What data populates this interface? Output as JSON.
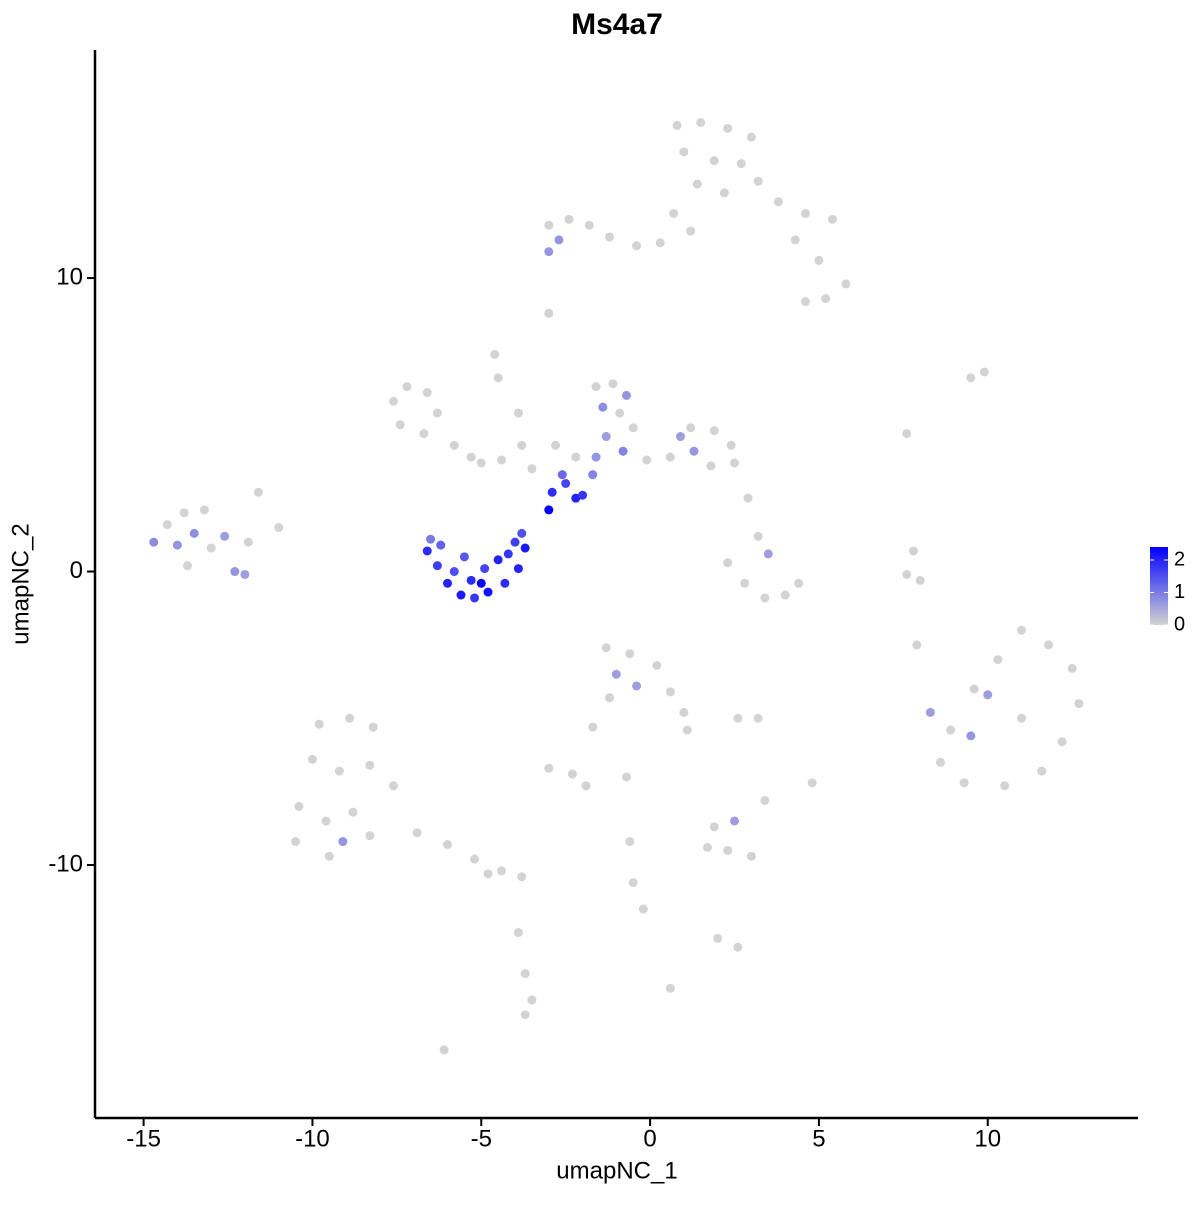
{
  "chart_data": {
    "type": "scatter",
    "title": "Ms4a7",
    "x_label": "umapNC_1",
    "y_label": "umapNC_2",
    "xlim": [
      -16.44,
      14.45
    ],
    "ylim": [
      -18.62,
      17.77
    ],
    "xticks": [
      -15,
      -10,
      -5,
      0,
      5,
      10
    ],
    "yticks": [
      -10,
      0,
      10
    ],
    "low_color": "#d3d3d3",
    "high_color": "#0000ff",
    "colorbar_lim": [
      0,
      2.4
    ],
    "colorbar_ticks": [
      0,
      1,
      2
    ],
    "x": [
      0.8,
      1.5,
      2.3,
      3.0,
      1.0,
      1.9,
      2.7,
      3.2,
      1.4,
      2.2,
      0.7,
      1.2,
      3.8,
      4.6,
      5.4,
      4.3,
      5.0,
      5.8,
      5.2,
      4.6,
      -3.0,
      -2.4,
      -1.8,
      -2.7,
      -1.2,
      -0.4,
      0.3,
      -3.0,
      -3.0,
      -4.6,
      -7.6,
      -7.2,
      -6.6,
      -6.3,
      -6.7,
      -7.4,
      -5.8,
      -5.3,
      -5.0,
      -4.4,
      -3.8,
      -3.9,
      -4.5,
      -3.5,
      -2.8,
      -2.2,
      -2.9,
      -2.5,
      -2.2,
      -2.0,
      -3.0,
      -2.6,
      -1.7,
      -1.6,
      -1.1,
      -0.7,
      -1.4,
      -0.9,
      -0.5,
      -1.3,
      -0.8,
      -1.6,
      0.6,
      1.2,
      1.9,
      2.4,
      2.5,
      1.8,
      1.3,
      0.9,
      -0.1,
      2.3,
      2.8,
      3.4,
      4.0,
      4.4,
      3.2,
      3.5,
      2.9,
      -14.7,
      -14.3,
      -13.8,
      -13.2,
      -14.0,
      -13.5,
      -13.0,
      -12.6,
      -13.7,
      -12.3,
      -12.0,
      -11.6,
      -6.6,
      -6.3,
      -6.0,
      -5.6,
      -5.2,
      -4.8,
      -4.3,
      -3.9,
      -3.7,
      -4.0,
      -5.8,
      -5.3,
      -4.9,
      -4.5,
      -5.5,
      -6.2,
      -5.0,
      -4.2,
      -6.5,
      -3.8,
      7.8,
      7.6,
      7.9,
      8.3,
      8.9,
      9.6,
      10.3,
      11.0,
      11.8,
      12.5,
      12.7,
      12.2,
      11.6,
      10.5,
      9.3,
      8.6,
      10.0,
      9.5,
      11.0,
      -1.3,
      -0.6,
      0.2,
      -1.0,
      -0.4,
      0.6,
      1.0,
      1.1,
      -1.2,
      -1.7,
      2.6,
      3.2,
      -3.0,
      -2.3,
      -1.9,
      -0.7,
      -9.8,
      -8.9,
      -8.2,
      -10.0,
      -9.2,
      -8.3,
      -7.6,
      -10.4,
      -9.6,
      -8.8,
      -10.5,
      -9.5,
      -9.1,
      -8.3,
      -6.9,
      -6.0,
      -5.2,
      -4.4,
      -3.8,
      -4.8,
      -3.9,
      -3.7,
      -3.5,
      -3.7,
      -6.1,
      1.7,
      2.3,
      3.0,
      2.5,
      1.9,
      -0.6,
      -0.5,
      -0.2,
      2.0,
      2.6,
      0.6,
      4.8,
      3.4,
      9.5,
      9.9,
      7.6,
      8.0,
      -11.0,
      -11.9
    ],
    "values": [
      15.2,
      15.3,
      15.1,
      14.8,
      14.3,
      14.0,
      13.9,
      13.3,
      13.2,
      12.9,
      12.2,
      11.6,
      12.6,
      12.2,
      12.0,
      11.3,
      10.6,
      9.8,
      9.3,
      9.2,
      11.8,
      12.0,
      11.8,
      11.3,
      11.4,
      11.1,
      11.2,
      10.9,
      8.8,
      7.4,
      5.8,
      6.3,
      6.1,
      5.4,
      4.7,
      5.0,
      4.3,
      3.9,
      3.7,
      3.8,
      4.3,
      5.4,
      6.6,
      3.5,
      4.3,
      3.9,
      2.7,
      3.0,
      2.5,
      2.6,
      2.1,
      3.3,
      3.3,
      6.3,
      6.4,
      6.0,
      5.6,
      5.4,
      4.9,
      4.6,
      4.1,
      3.9,
      3.9,
      4.9,
      4.8,
      4.3,
      3.7,
      3.6,
      4.1,
      4.6,
      3.8,
      0.3,
      -0.4,
      -0.9,
      -0.8,
      -0.4,
      1.2,
      0.6,
      2.5,
      1.0,
      1.6,
      2.0,
      2.1,
      0.9,
      1.3,
      0.8,
      1.2,
      0.2,
      0.0,
      -0.1,
      2.7,
      0.7,
      0.2,
      -0.4,
      -0.8,
      -0.9,
      -0.7,
      -0.4,
      0.1,
      0.8,
      1.0,
      0.0,
      -0.3,
      0.1,
      0.4,
      0.5,
      0.9,
      -0.4,
      0.6,
      1.1,
      1.3,
      0.7,
      -0.1,
      -2.5,
      -4.8,
      -5.4,
      -4.0,
      -3.0,
      -2.0,
      -2.5,
      -3.3,
      -4.5,
      -5.8,
      -6.8,
      -7.3,
      -7.2,
      -6.5,
      -4.2,
      -5.6,
      -5.0,
      -2.6,
      -2.8,
      -3.2,
      -3.5,
      -3.9,
      -4.1,
      -4.8,
      -5.4,
      -4.3,
      -5.3,
      -5.0,
      -5.0,
      -6.7,
      -6.9,
      -7.3,
      -7.0,
      -5.2,
      -5.0,
      -5.3,
      -6.4,
      -6.8,
      -6.6,
      -7.3,
      -8.0,
      -8.5,
      -8.2,
      -9.2,
      -9.7,
      -9.2,
      -9.0,
      -8.9,
      -9.3,
      -9.8,
      -10.2,
      -10.4,
      -10.3,
      -12.3,
      -13.7,
      -14.6,
      -15.1,
      -16.3,
      -9.4,
      -9.5,
      -9.7,
      -8.5,
      -8.7,
      -9.2,
      -10.6,
      -11.5,
      -12.5,
      -12.8,
      -14.2,
      -7.2,
      -7.8,
      6.6,
      6.8,
      4.7,
      -0.3,
      1.5,
      1.0
    ],
    "expression": [
      0,
      0,
      0,
      0,
      0,
      0,
      0,
      0,
      0,
      0,
      0,
      0,
      0,
      0,
      0,
      0,
      0,
      0,
      0,
      0,
      0,
      0,
      0,
      0.7,
      0,
      0,
      0,
      0.7,
      0,
      0,
      0,
      0,
      0,
      0,
      0,
      0,
      0,
      0,
      0,
      0,
      0,
      0,
      0,
      0,
      0,
      0,
      1.9,
      1.6,
      2.0,
      1.8,
      2.4,
      1.2,
      0.9,
      0,
      0,
      0.7,
      0.8,
      0,
      0,
      0.6,
      0.9,
      0.7,
      0,
      0,
      0,
      0,
      0,
      0,
      0.7,
      0.6,
      0,
      0,
      0,
      0,
      0,
      0,
      0,
      0.6,
      0,
      0.8,
      0,
      0,
      0,
      0.7,
      0.8,
      0,
      0.6,
      0,
      0.7,
      0.6,
      0,
      1.9,
      1.7,
      2.0,
      2.1,
      1.8,
      2.2,
      1.9,
      2.0,
      2.1,
      1.7,
      1.5,
      1.9,
      1.6,
      2.0,
      1.4,
      1.3,
      2.3,
      1.8,
      1.0,
      1.5,
      0,
      0,
      0,
      0.6,
      0,
      0,
      0,
      0,
      0,
      0,
      0,
      0,
      0,
      0,
      0,
      0,
      0.6,
      0.7,
      0,
      0,
      0,
      0,
      0.6,
      0.6,
      0,
      0,
      0,
      0,
      0,
      0,
      0,
      0,
      0,
      0,
      0,
      0,
      0,
      0,
      0,
      0,
      0,
      0,
      0,
      0,
      0,
      0,
      0,
      0.7,
      0,
      0,
      0,
      0,
      0,
      0,
      0,
      0,
      0,
      0,
      0,
      0,
      0,
      0,
      0,
      0.6,
      0,
      0,
      0,
      0,
      0,
      0,
      0,
      0,
      0,
      0,
      0,
      0,
      0,
      0,
      0
    ]
  }
}
